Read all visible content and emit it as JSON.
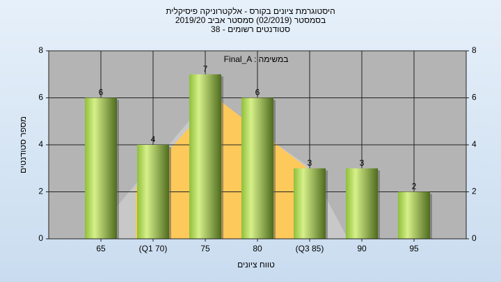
{
  "chart_data": {
    "type": "bar",
    "title": [
      "היסטוגרמת ציונים בקורס - אלקטרוניקה פיסיקלית",
      "בסמסטר  (02/2019)  סמסטר אביב 2019/20",
      "סטודנטים רשומים - 38"
    ],
    "annotation": "Final_A : במשימה",
    "xlabel": "טווח ציונים",
    "ylabel": "מספר סטודנטים",
    "categories": [
      "65",
      "(Q1 70)",
      "75",
      "80",
      "(Q3 85)",
      "90",
      "95"
    ],
    "values": [
      6,
      4,
      7,
      6,
      3,
      3,
      2
    ],
    "ylim": [
      0,
      8
    ],
    "yticks": [
      0,
      2,
      4,
      6,
      8
    ],
    "y2lim": [
      0,
      8
    ],
    "y2ticks": [
      0,
      2,
      4,
      6,
      8
    ],
    "grid": true
  }
}
